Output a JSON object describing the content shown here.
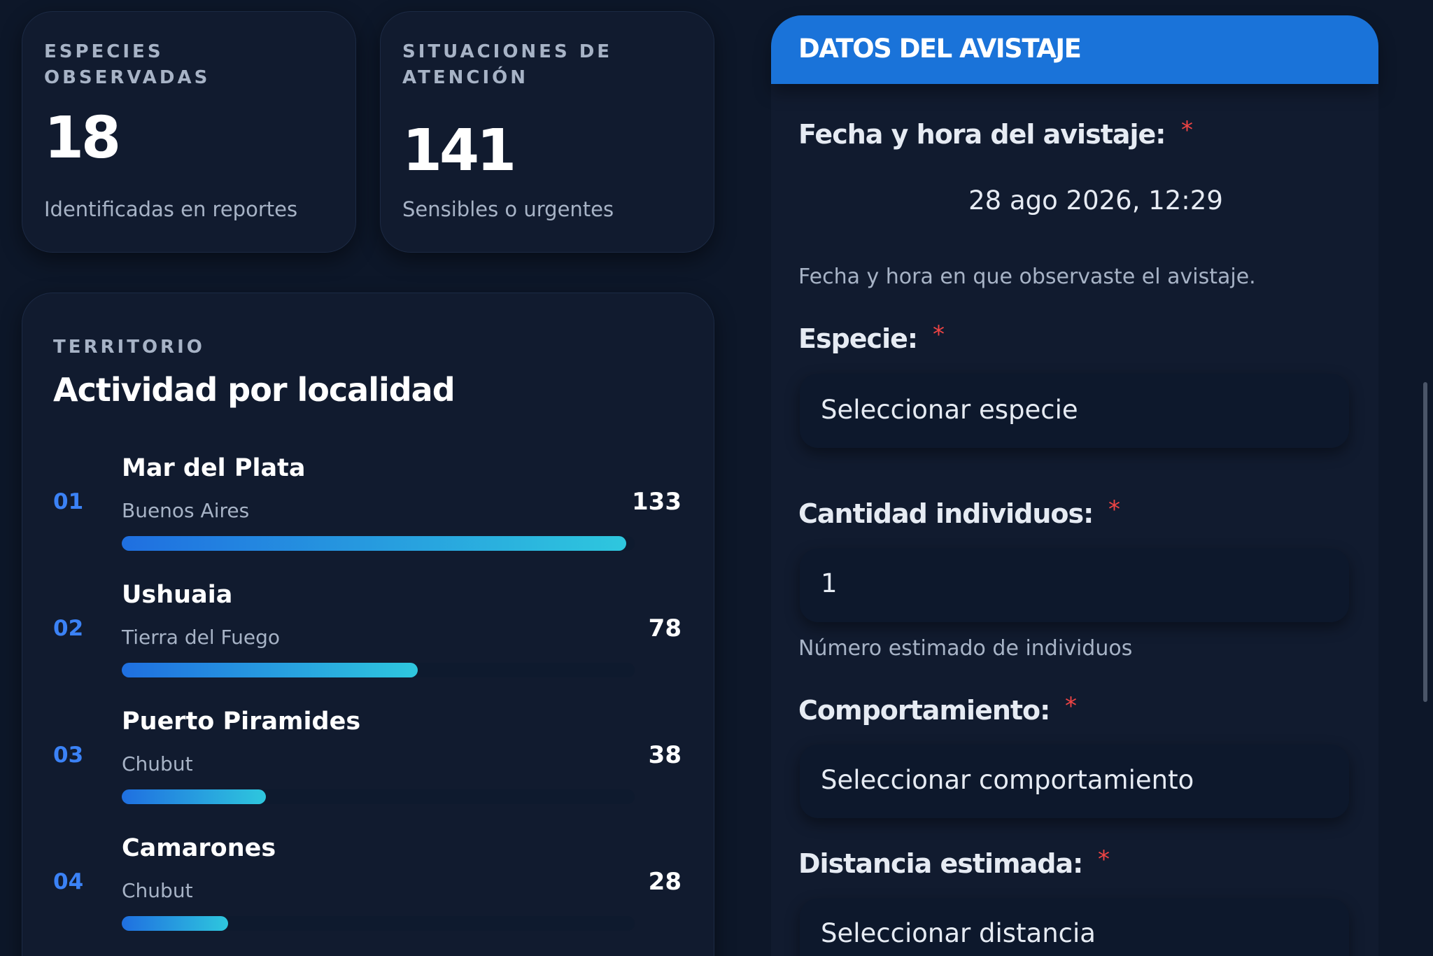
{
  "stats": [
    {
      "label": "ESPECIES OBSERVADAS",
      "value": 18,
      "caption": "Identificadas en reportes"
    },
    {
      "label": "SITUACIONES DE ATENCIÓN",
      "value": 141,
      "caption": "Sensibles o urgentes"
    }
  ],
  "territory": {
    "eyebrow": "TERRITORIO",
    "title": "Actividad por localidad",
    "items": [
      {
        "rank": "01",
        "name": "Mar del Plata",
        "region": "Buenos Aires",
        "value": 133
      },
      {
        "rank": "02",
        "name": "Ushuaia",
        "region": "Tierra del Fuego",
        "value": 78
      },
      {
        "rank": "03",
        "name": "Puerto Piramides",
        "region": "Chubut",
        "value": 38
      },
      {
        "rank": "04",
        "name": "Camarones",
        "region": "Chubut",
        "value": 28
      }
    ]
  },
  "form": {
    "header": "DATOS DEL AVISTAJE",
    "required_mark": "*",
    "fields": [
      {
        "label": "Fecha y hora del avistaje:",
        "value": "28 ago 2026, 12:29",
        "help": "Fecha y hora en que observaste el avistaje."
      },
      {
        "label": "Especie:",
        "value": "Seleccionar especie"
      },
      {
        "label": "Cantidad individuos:",
        "value": "1",
        "help": "Número estimado de individuos"
      },
      {
        "label": "Comportamiento:",
        "value": "Seleccionar comportamiento"
      },
      {
        "label": "Distancia estimada:",
        "value": "Seleccionar distancia"
      }
    ]
  }
}
